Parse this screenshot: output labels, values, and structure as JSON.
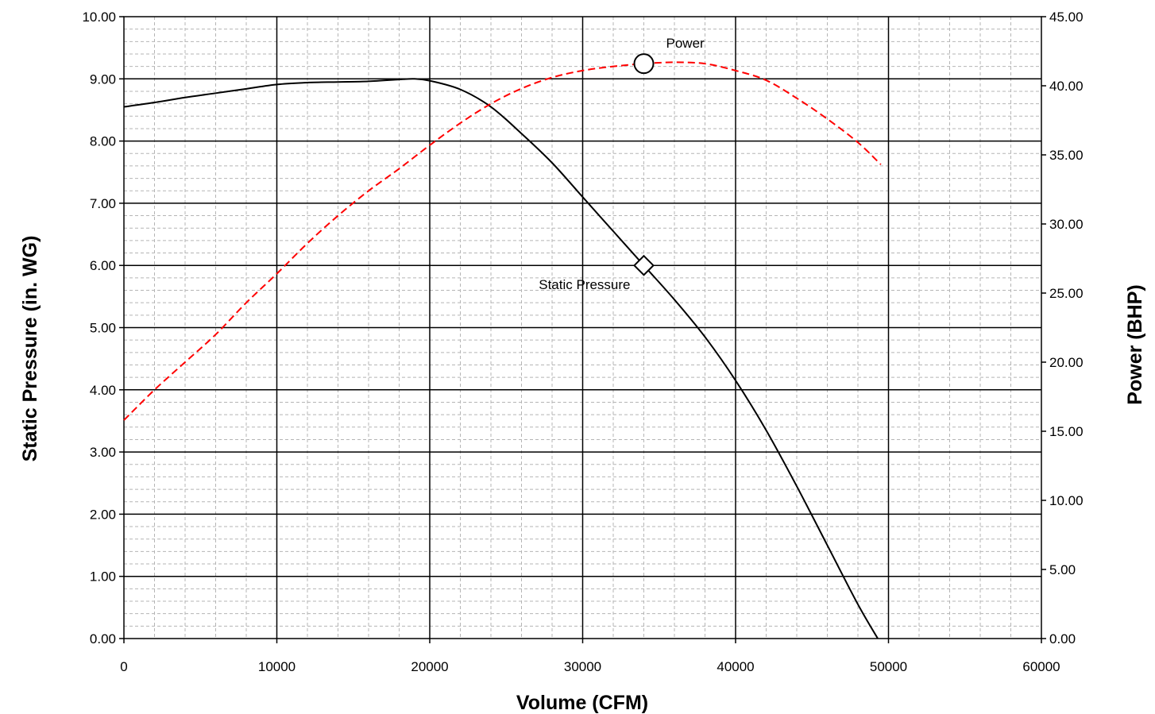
{
  "chart_data": {
    "type": "line",
    "xlabel": "Volume (CFM)",
    "ylabel_left": "Static Pressure (in. WG)",
    "ylabel_right": "Power (BHP)",
    "xlim": [
      0,
      60000
    ],
    "ylim_left": [
      0,
      10
    ],
    "ylim_right": [
      0,
      45
    ],
    "x_ticks": [
      "0",
      "10000",
      "20000",
      "30000",
      "40000",
      "50000",
      "60000"
    ],
    "y_ticks_left": [
      "0.00",
      "1.00",
      "2.00",
      "3.00",
      "4.00",
      "5.00",
      "6.00",
      "7.00",
      "8.00",
      "9.00",
      "10.00"
    ],
    "y_ticks_right": [
      "0.00",
      "5.00",
      "10.00",
      "15.00",
      "20.00",
      "25.00",
      "30.00",
      "35.00",
      "40.00",
      "45.00"
    ],
    "x_minor_step": 2000,
    "y_minor_step": 0.2,
    "grid": true,
    "series": [
      {
        "name": "Static Pressure",
        "axis": "left",
        "color": "#000000",
        "style": "solid",
        "x": [
          0,
          2000,
          4000,
          6000,
          8000,
          10000,
          12000,
          14000,
          16000,
          18000,
          19000,
          20000,
          22000,
          24000,
          26000,
          28000,
          30000,
          32000,
          34000,
          36000,
          38000,
          40000,
          42000,
          44000,
          46000,
          48000,
          49300
        ],
        "y": [
          8.55,
          8.62,
          8.7,
          8.77,
          8.84,
          8.91,
          8.94,
          8.95,
          8.96,
          8.99,
          9.0,
          8.97,
          8.83,
          8.55,
          8.12,
          7.65,
          7.1,
          6.55,
          6.0,
          5.45,
          4.85,
          4.15,
          3.35,
          2.45,
          1.5,
          0.55,
          0.0
        ]
      },
      {
        "name": "Power",
        "axis": "right",
        "color": "#ff0000",
        "style": "dashed",
        "x": [
          0,
          2000,
          4000,
          6000,
          8000,
          10000,
          12000,
          14000,
          16000,
          18000,
          20000,
          22000,
          24000,
          26000,
          28000,
          30000,
          32000,
          34000,
          36000,
          38000,
          40000,
          42000,
          44000,
          46000,
          48000,
          49500
        ],
        "y": [
          15.8,
          18.0,
          20.0,
          22.0,
          24.3,
          26.4,
          28.6,
          30.6,
          32.4,
          34.0,
          35.7,
          37.3,
          38.7,
          39.8,
          40.6,
          41.1,
          41.4,
          41.6,
          41.7,
          41.6,
          41.1,
          40.4,
          39.1,
          37.6,
          35.9,
          34.3
        ]
      }
    ],
    "markers": [
      {
        "series": "Power",
        "shape": "circle",
        "x": 34000,
        "y": 41.6,
        "label": "Power"
      },
      {
        "series": "Static Pressure",
        "shape": "diamond",
        "x": 34000,
        "y": 6.0,
        "label": "Static Pressure"
      }
    ]
  }
}
